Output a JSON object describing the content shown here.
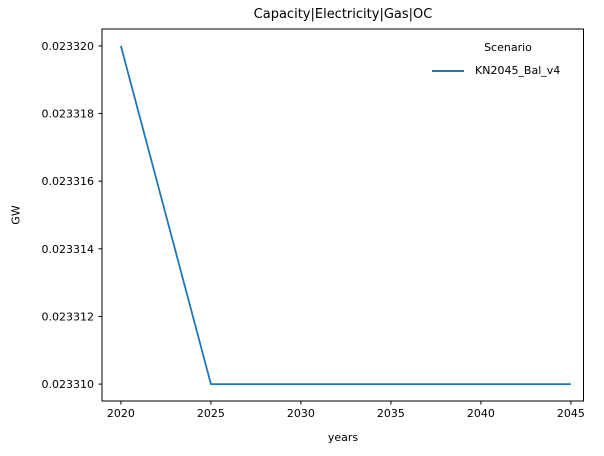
{
  "figure": {
    "title": "Capacity|Electricity|Gas|OC",
    "xlabel": "years",
    "ylabel": "GW",
    "legend": {
      "title": "Scenario",
      "entries": [
        {
          "label": "KN2045_Bal_v4",
          "color": "#1f77b4"
        }
      ]
    }
  },
  "chart_data": {
    "type": "line",
    "title": "Capacity|Electricity|Gas|OC",
    "xlabel": "years",
    "ylabel": "GW",
    "x": [
      2020,
      2025,
      2030,
      2035,
      2040,
      2045
    ],
    "series": [
      {
        "name": "KN2045_Bal_v4",
        "color": "#1f77b4",
        "values": [
          0.02332,
          0.02331,
          0.02331,
          0.02331,
          0.02331,
          0.02331
        ]
      }
    ],
    "xticks": [
      2020,
      2025,
      2030,
      2035,
      2040,
      2045
    ],
    "xtick_labels": [
      "2020",
      "2025",
      "2030",
      "2035",
      "2040",
      "2045"
    ],
    "yticks": [
      0.02331,
      0.023312,
      0.023314,
      0.023316,
      0.023318,
      0.02332
    ],
    "ytick_labels": [
      "0.023310",
      "0.023312",
      "0.023314",
      "0.023316",
      "0.023318",
      "0.023320"
    ],
    "xlim": [
      2018.95,
      2045.7
    ],
    "ylim": [
      0.0233095,
      0.0233205
    ],
    "grid": false,
    "legend_position": "upper right",
    "legend_title": "Scenario",
    "axis_color": "#000000",
    "line_width": 1.8
  }
}
